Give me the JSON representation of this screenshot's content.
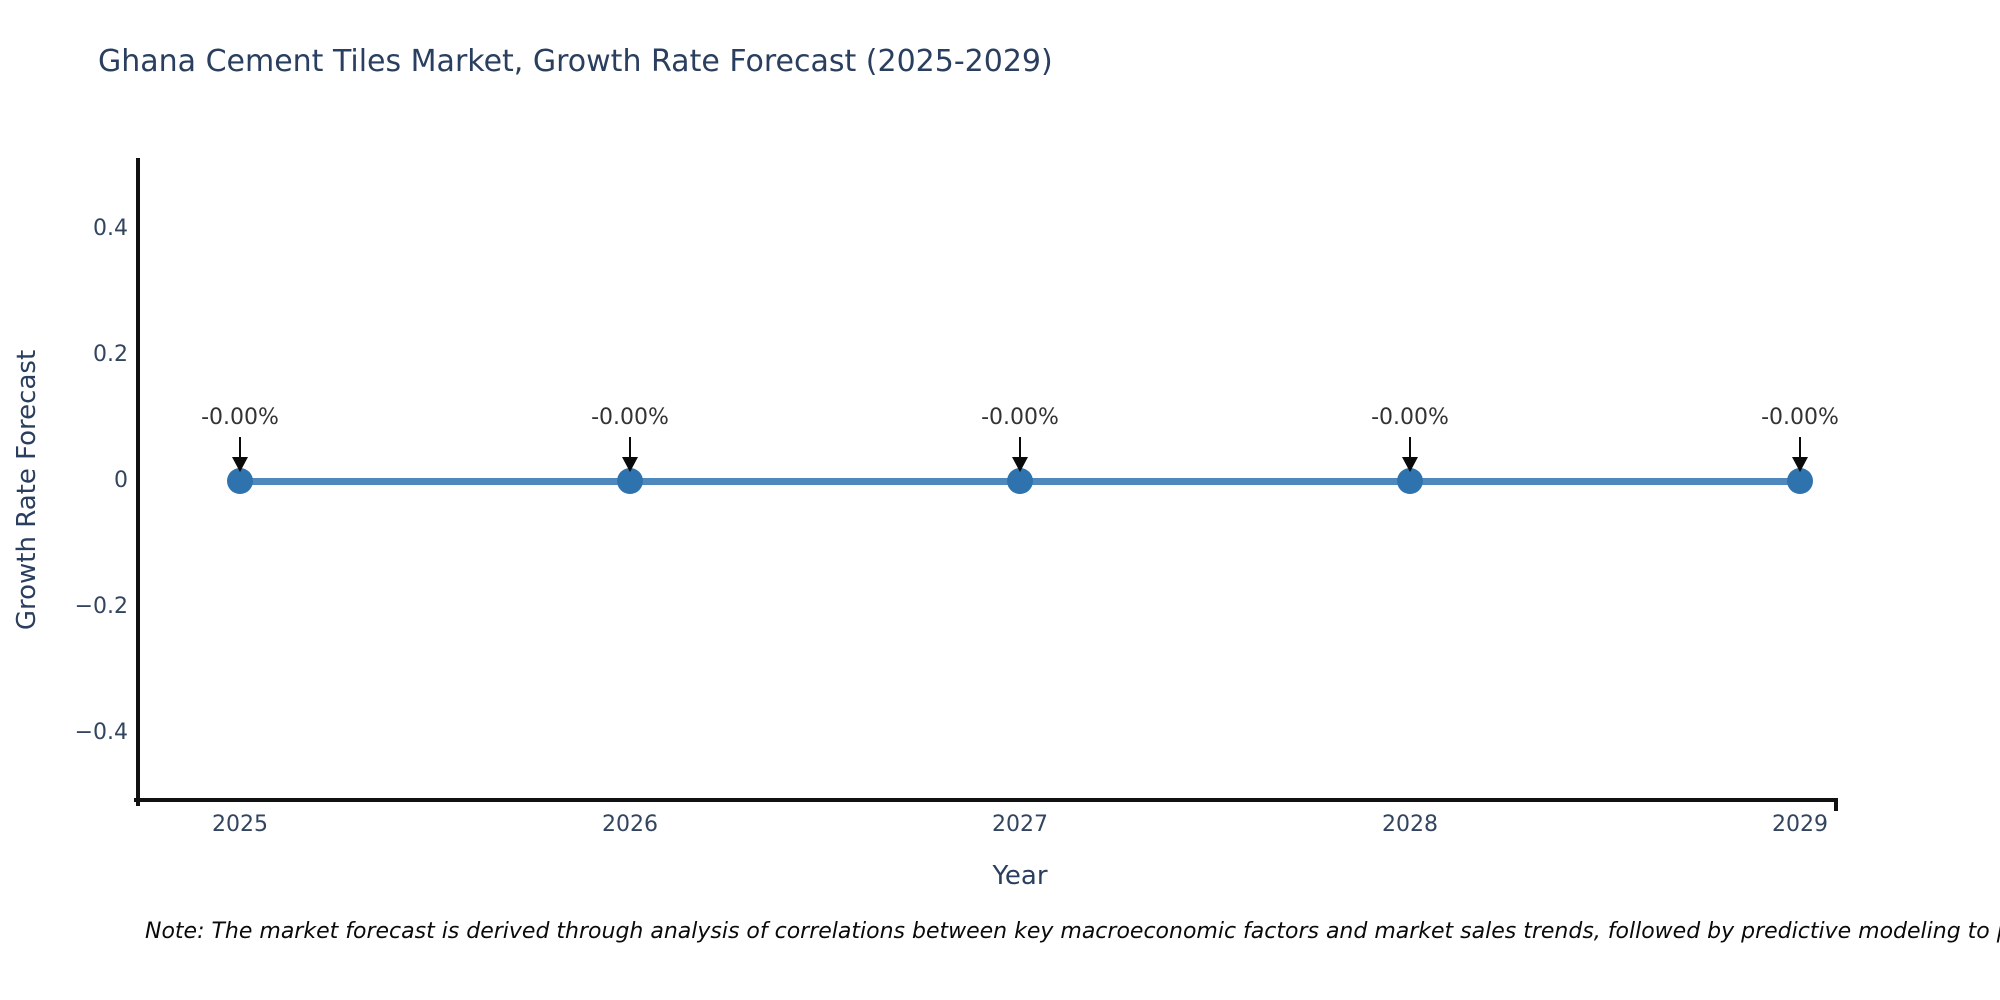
{
  "chart_data": {
    "type": "line",
    "title": "Ghana Cement Tiles Market, Growth Rate Forecast (2025-2029)",
    "xlabel": "Year",
    "ylabel": "Growth Rate Forecast",
    "x": [
      "2025",
      "2026",
      "2027",
      "2028",
      "2029"
    ],
    "series": [
      {
        "name": "Growth Rate Forecast",
        "values": [
          0,
          0,
          0,
          0,
          0
        ],
        "point_labels": [
          "-0.00%",
          "-0.00%",
          "-0.00%",
          "-0.00%",
          "-0.00%"
        ]
      }
    ],
    "ytick_labels": [
      "0.4",
      "0.2",
      "0",
      "−0.2",
      "−0.4"
    ],
    "ytick_values": [
      0.4,
      0.2,
      0,
      -0.2,
      -0.4
    ],
    "ylim": [
      -0.51,
      0.51
    ],
    "grid": false,
    "legend_position": "none",
    "colors": {
      "line": "#4f88bd",
      "marker": "#2f73ae",
      "axis": "#111111",
      "title_text": "#2a3f5f",
      "tick_text": "#33455e",
      "annotation_text": "#333333",
      "arrow": "#0a0a0a"
    }
  },
  "note": {
    "text": "Note: The market forecast is derived through analysis of correlations between key macroeconomic factors and market sales trends, followed by predictive modeling to project future sal"
  }
}
